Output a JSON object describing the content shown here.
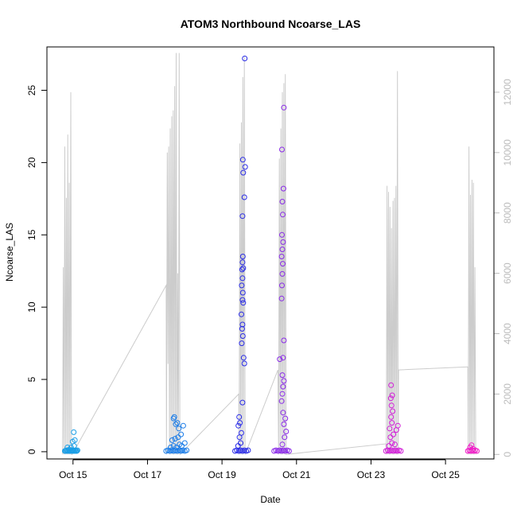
{
  "chart_data": {
    "type": "scatter",
    "title": "ATOM3 Northbound Ncoarse_LAS",
    "xlabel": "Date",
    "ylabel": "Ncoarse_LAS",
    "x_ticks": [
      "Oct 15",
      "Oct 17",
      "Oct 19",
      "Oct 21",
      "Oct 23",
      "Oct 25"
    ],
    "x_tick_days": [
      15,
      17,
      19,
      21,
      23,
      25
    ],
    "xlim_days": [
      14.3,
      26.3
    ],
    "y_ticks": [
      0,
      5,
      10,
      15,
      20,
      25
    ],
    "ylim": [
      -0.5,
      28.0
    ],
    "y2_ticks": [
      0,
      2000,
      4000,
      6000,
      8000,
      10000,
      12000
    ],
    "y2lim": [
      -150,
      13500
    ],
    "grid": false,
    "line_color": "#cccccc",
    "right_axis_color": "#bbbbbb",
    "points": [
      {
        "x": 14.78,
        "y": 0.05,
        "c": "#1a9ee6"
      },
      {
        "x": 14.8,
        "y": 0.05,
        "c": "#1a9ee6"
      },
      {
        "x": 14.82,
        "y": 0.1,
        "c": "#1a9ee6"
      },
      {
        "x": 14.84,
        "y": 0.05,
        "c": "#1a9ee6"
      },
      {
        "x": 14.86,
        "y": 0.1,
        "c": "#1a9ee6"
      },
      {
        "x": 14.88,
        "y": 0.05,
        "c": "#1a9ee6"
      },
      {
        "x": 14.9,
        "y": 0.15,
        "c": "#1a9ee6"
      },
      {
        "x": 14.92,
        "y": 0.05,
        "c": "#1a9ee6"
      },
      {
        "x": 14.94,
        "y": 0.05,
        "c": "#1a9ee6"
      },
      {
        "x": 14.96,
        "y": 0.1,
        "c": "#1a9ee6"
      },
      {
        "x": 14.98,
        "y": 0.05,
        "c": "#1a9ee6"
      },
      {
        "x": 15.0,
        "y": 0.1,
        "c": "#1a9ee6"
      },
      {
        "x": 15.02,
        "y": 0.05,
        "c": "#1a9ee6"
      },
      {
        "x": 15.04,
        "y": 0.05,
        "c": "#1a9ee6"
      },
      {
        "x": 15.06,
        "y": 0.1,
        "c": "#1a9ee6"
      },
      {
        "x": 15.08,
        "y": 0.05,
        "c": "#1a9ee6"
      },
      {
        "x": 15.1,
        "y": 0.05,
        "c": "#1a9ee6"
      },
      {
        "x": 15.12,
        "y": 0.1,
        "c": "#1a9ee6"
      },
      {
        "x": 14.85,
        "y": 0.3,
        "c": "#1a9ee6"
      },
      {
        "x": 14.95,
        "y": 0.3,
        "c": "#1a9ee6"
      },
      {
        "x": 15.03,
        "y": 0.4,
        "c": "#1a9ee6"
      },
      {
        "x": 14.99,
        "y": 0.7,
        "c": "#1a9ee6"
      },
      {
        "x": 15.05,
        "y": 0.8,
        "c": "#1a9ee6"
      },
      {
        "x": 15.02,
        "y": 1.35,
        "c": "#1a9ee6"
      },
      {
        "x": 17.5,
        "y": 0.05,
        "c": "#1a7ce8"
      },
      {
        "x": 17.55,
        "y": 0.1,
        "c": "#1a7ce8"
      },
      {
        "x": 17.6,
        "y": 0.05,
        "c": "#1a7ce8"
      },
      {
        "x": 17.65,
        "y": 0.1,
        "c": "#1a7ce8"
      },
      {
        "x": 17.7,
        "y": 0.05,
        "c": "#1a7ce8"
      },
      {
        "x": 17.75,
        "y": 0.1,
        "c": "#1a7ce8"
      },
      {
        "x": 17.8,
        "y": 0.05,
        "c": "#1a7ce8"
      },
      {
        "x": 17.85,
        "y": 0.1,
        "c": "#1a7ce8"
      },
      {
        "x": 17.9,
        "y": 0.05,
        "c": "#1a7ce8"
      },
      {
        "x": 17.95,
        "y": 0.1,
        "c": "#1a7ce8"
      },
      {
        "x": 18.0,
        "y": 0.05,
        "c": "#1a7ce8"
      },
      {
        "x": 18.05,
        "y": 0.1,
        "c": "#1a7ce8"
      },
      {
        "x": 17.62,
        "y": 0.3,
        "c": "#1a7ce8"
      },
      {
        "x": 17.7,
        "y": 0.4,
        "c": "#1a7ce8"
      },
      {
        "x": 17.78,
        "y": 0.3,
        "c": "#1a7ce8"
      },
      {
        "x": 17.86,
        "y": 0.5,
        "c": "#1a7ce8"
      },
      {
        "x": 17.92,
        "y": 0.4,
        "c": "#1a7ce8"
      },
      {
        "x": 18.0,
        "y": 0.6,
        "c": "#1a7ce8"
      },
      {
        "x": 17.66,
        "y": 0.8,
        "c": "#1a7ce8"
      },
      {
        "x": 17.74,
        "y": 0.9,
        "c": "#1a7ce8"
      },
      {
        "x": 17.82,
        "y": 1.0,
        "c": "#1a7ce8"
      },
      {
        "x": 17.9,
        "y": 1.2,
        "c": "#1a7ce8"
      },
      {
        "x": 17.96,
        "y": 1.8,
        "c": "#1a7ce8"
      },
      {
        "x": 17.84,
        "y": 1.6,
        "c": "#1a7ce8"
      },
      {
        "x": 17.76,
        "y": 1.9,
        "c": "#1a7ce8"
      },
      {
        "x": 17.7,
        "y": 2.3,
        "c": "#1a7ce8"
      },
      {
        "x": 17.72,
        "y": 2.4,
        "c": "#1a7ce8"
      },
      {
        "x": 17.8,
        "y": 2.0,
        "c": "#1a7ce8"
      },
      {
        "x": 19.35,
        "y": 0.05,
        "c": "#2a2ce8"
      },
      {
        "x": 19.4,
        "y": 0.1,
        "c": "#2a2ce8"
      },
      {
        "x": 19.45,
        "y": 0.05,
        "c": "#2a2ce8"
      },
      {
        "x": 19.5,
        "y": 0.1,
        "c": "#2a2ce8"
      },
      {
        "x": 19.55,
        "y": 0.05,
        "c": "#2a2ce8"
      },
      {
        "x": 19.6,
        "y": 0.1,
        "c": "#2a2ce8"
      },
      {
        "x": 19.65,
        "y": 0.05,
        "c": "#2a2ce8"
      },
      {
        "x": 19.7,
        "y": 0.1,
        "c": "#2a2ce8"
      },
      {
        "x": 19.43,
        "y": 0.4,
        "c": "#2a2ce8"
      },
      {
        "x": 19.5,
        "y": 0.6,
        "c": "#2a2ce8"
      },
      {
        "x": 19.47,
        "y": 1.0,
        "c": "#2a2ce8"
      },
      {
        "x": 19.52,
        "y": 1.3,
        "c": "#2a2ce8"
      },
      {
        "x": 19.44,
        "y": 1.8,
        "c": "#2a2ce8"
      },
      {
        "x": 19.48,
        "y": 2.0,
        "c": "#2a2ce8"
      },
      {
        "x": 19.46,
        "y": 2.4,
        "c": "#2a2ce8"
      },
      {
        "x": 19.55,
        "y": 3.4,
        "c": "#2a2ce8"
      },
      {
        "x": 19.6,
        "y": 6.1,
        "c": "#2a2ce8"
      },
      {
        "x": 19.58,
        "y": 6.5,
        "c": "#2a2ce8"
      },
      {
        "x": 19.53,
        "y": 7.5,
        "c": "#2a2ce8"
      },
      {
        "x": 19.56,
        "y": 8.0,
        "c": "#2a2ce8"
      },
      {
        "x": 19.54,
        "y": 8.5,
        "c": "#2a2ce8"
      },
      {
        "x": 19.55,
        "y": 8.8,
        "c": "#2a2ce8"
      },
      {
        "x": 19.52,
        "y": 9.5,
        "c": "#2a2ce8"
      },
      {
        "x": 19.57,
        "y": 10.3,
        "c": "#2a2ce8"
      },
      {
        "x": 19.55,
        "y": 10.5,
        "c": "#2a2ce8"
      },
      {
        "x": 19.56,
        "y": 11.0,
        "c": "#2a2ce8"
      },
      {
        "x": 19.53,
        "y": 11.5,
        "c": "#2a2ce8"
      },
      {
        "x": 19.55,
        "y": 12.0,
        "c": "#2a2ce8"
      },
      {
        "x": 19.54,
        "y": 12.6,
        "c": "#2a2ce8"
      },
      {
        "x": 19.57,
        "y": 12.7,
        "c": "#2a2ce8"
      },
      {
        "x": 19.55,
        "y": 13.1,
        "c": "#2a2ce8"
      },
      {
        "x": 19.56,
        "y": 13.5,
        "c": "#2a2ce8"
      },
      {
        "x": 19.55,
        "y": 16.3,
        "c": "#2a2ce8"
      },
      {
        "x": 19.6,
        "y": 17.6,
        "c": "#2a2ce8"
      },
      {
        "x": 19.57,
        "y": 19.3,
        "c": "#2a2ce8"
      },
      {
        "x": 19.62,
        "y": 19.7,
        "c": "#2a2ce8"
      },
      {
        "x": 19.56,
        "y": 20.2,
        "c": "#2a2ce8"
      },
      {
        "x": 19.61,
        "y": 27.2,
        "c": "#2a2ce8"
      },
      {
        "x": 20.4,
        "y": 0.05,
        "c": "#8a2ae8"
      },
      {
        "x": 20.45,
        "y": 0.1,
        "c": "#8a2ae8"
      },
      {
        "x": 20.5,
        "y": 0.05,
        "c": "#8a2ae8"
      },
      {
        "x": 20.55,
        "y": 0.1,
        "c": "#8a2ae8"
      },
      {
        "x": 20.6,
        "y": 0.05,
        "c": "#8a2ae8"
      },
      {
        "x": 20.65,
        "y": 0.1,
        "c": "#8a2ae8"
      },
      {
        "x": 20.7,
        "y": 0.05,
        "c": "#8a2ae8"
      },
      {
        "x": 20.75,
        "y": 0.1,
        "c": "#8a2ae8"
      },
      {
        "x": 20.8,
        "y": 0.05,
        "c": "#8a2ae8"
      },
      {
        "x": 20.62,
        "y": 0.5,
        "c": "#8a2ae8"
      },
      {
        "x": 20.68,
        "y": 1.0,
        "c": "#8a2ae8"
      },
      {
        "x": 20.72,
        "y": 1.4,
        "c": "#8a2ae8"
      },
      {
        "x": 20.66,
        "y": 1.9,
        "c": "#8a2ae8"
      },
      {
        "x": 20.7,
        "y": 2.3,
        "c": "#8a2ae8"
      },
      {
        "x": 20.64,
        "y": 2.7,
        "c": "#8a2ae8"
      },
      {
        "x": 20.6,
        "y": 3.5,
        "c": "#8a2ae8"
      },
      {
        "x": 20.62,
        "y": 4.0,
        "c": "#8a2ae8"
      },
      {
        "x": 20.64,
        "y": 4.5,
        "c": "#8a2ae8"
      },
      {
        "x": 20.66,
        "y": 4.9,
        "c": "#8a2ae8"
      },
      {
        "x": 20.62,
        "y": 5.3,
        "c": "#8a2ae8"
      },
      {
        "x": 20.55,
        "y": 6.4,
        "c": "#8a2ae8"
      },
      {
        "x": 20.64,
        "y": 6.5,
        "c": "#8a2ae8"
      },
      {
        "x": 20.66,
        "y": 7.7,
        "c": "#8a2ae8"
      },
      {
        "x": 20.6,
        "y": 10.6,
        "c": "#8a2ae8"
      },
      {
        "x": 20.61,
        "y": 11.5,
        "c": "#8a2ae8"
      },
      {
        "x": 20.62,
        "y": 12.3,
        "c": "#8a2ae8"
      },
      {
        "x": 20.63,
        "y": 13.0,
        "c": "#8a2ae8"
      },
      {
        "x": 20.6,
        "y": 13.5,
        "c": "#8a2ae8"
      },
      {
        "x": 20.62,
        "y": 14.0,
        "c": "#8a2ae8"
      },
      {
        "x": 20.64,
        "y": 14.5,
        "c": "#8a2ae8"
      },
      {
        "x": 20.61,
        "y": 15.0,
        "c": "#8a2ae8"
      },
      {
        "x": 20.63,
        "y": 16.4,
        "c": "#8a2ae8"
      },
      {
        "x": 20.62,
        "y": 17.3,
        "c": "#8a2ae8"
      },
      {
        "x": 20.65,
        "y": 18.2,
        "c": "#8a2ae8"
      },
      {
        "x": 20.61,
        "y": 20.9,
        "c": "#8a2ae8"
      },
      {
        "x": 20.66,
        "y": 23.8,
        "c": "#8a2ae8"
      },
      {
        "x": 23.4,
        "y": 0.05,
        "c": "#d21ed9"
      },
      {
        "x": 23.45,
        "y": 0.1,
        "c": "#d21ed9"
      },
      {
        "x": 23.5,
        "y": 0.05,
        "c": "#d21ed9"
      },
      {
        "x": 23.55,
        "y": 0.1,
        "c": "#d21ed9"
      },
      {
        "x": 23.6,
        "y": 0.05,
        "c": "#d21ed9"
      },
      {
        "x": 23.65,
        "y": 0.1,
        "c": "#d21ed9"
      },
      {
        "x": 23.7,
        "y": 0.05,
        "c": "#d21ed9"
      },
      {
        "x": 23.75,
        "y": 0.1,
        "c": "#d21ed9"
      },
      {
        "x": 23.8,
        "y": 0.05,
        "c": "#d21ed9"
      },
      {
        "x": 23.48,
        "y": 0.4,
        "c": "#d21ed9"
      },
      {
        "x": 23.56,
        "y": 0.6,
        "c": "#d21ed9"
      },
      {
        "x": 23.64,
        "y": 0.5,
        "c": "#d21ed9"
      },
      {
        "x": 23.52,
        "y": 1.0,
        "c": "#d21ed9"
      },
      {
        "x": 23.6,
        "y": 1.2,
        "c": "#d21ed9"
      },
      {
        "x": 23.68,
        "y": 1.5,
        "c": "#d21ed9"
      },
      {
        "x": 23.72,
        "y": 1.8,
        "c": "#d21ed9"
      },
      {
        "x": 23.5,
        "y": 1.6,
        "c": "#d21ed9"
      },
      {
        "x": 23.56,
        "y": 2.0,
        "c": "#d21ed9"
      },
      {
        "x": 23.54,
        "y": 2.4,
        "c": "#d21ed9"
      },
      {
        "x": 23.58,
        "y": 2.8,
        "c": "#d21ed9"
      },
      {
        "x": 23.55,
        "y": 3.2,
        "c": "#d21ed9"
      },
      {
        "x": 23.53,
        "y": 3.7,
        "c": "#d21ed9"
      },
      {
        "x": 23.57,
        "y": 3.9,
        "c": "#d21ed9"
      },
      {
        "x": 23.54,
        "y": 4.6,
        "c": "#d21ed9"
      },
      {
        "x": 25.6,
        "y": 0.05,
        "c": "#f01ec8"
      },
      {
        "x": 25.64,
        "y": 0.1,
        "c": "#f01ec8"
      },
      {
        "x": 25.68,
        "y": 0.05,
        "c": "#f01ec8"
      },
      {
        "x": 25.72,
        "y": 0.1,
        "c": "#f01ec8"
      },
      {
        "x": 25.76,
        "y": 0.05,
        "c": "#f01ec8"
      },
      {
        "x": 25.8,
        "y": 0.1,
        "c": "#f01ec8"
      },
      {
        "x": 25.84,
        "y": 0.05,
        "c": "#f01ec8"
      },
      {
        "x": 25.66,
        "y": 0.3,
        "c": "#f01ec8"
      },
      {
        "x": 25.74,
        "y": 0.2,
        "c": "#f01ec8"
      },
      {
        "x": 25.7,
        "y": 0.45,
        "c": "#f01ec8"
      }
    ],
    "line": [
      [
        14.72,
        0
      ],
      [
        14.74,
        6200
      ],
      [
        14.76,
        0
      ],
      [
        14.78,
        10200
      ],
      [
        14.8,
        0
      ],
      [
        14.82,
        8500
      ],
      [
        14.84,
        0
      ],
      [
        14.86,
        10600
      ],
      [
        14.88,
        0
      ],
      [
        14.9,
        9000
      ],
      [
        14.92,
        0
      ],
      [
        14.94,
        12000
      ],
      [
        14.96,
        0
      ],
      [
        14.98,
        0
      ],
      [
        17.5,
        5600
      ],
      [
        17.51,
        0
      ],
      [
        17.53,
        10000
      ],
      [
        17.55,
        3000
      ],
      [
        17.57,
        10200
      ],
      [
        17.59,
        0
      ],
      [
        17.61,
        10800
      ],
      [
        17.63,
        0
      ],
      [
        17.65,
        11200
      ],
      [
        17.67,
        0
      ],
      [
        17.69,
        11400
      ],
      [
        17.71,
        0
      ],
      [
        17.73,
        12200
      ],
      [
        17.75,
        0
      ],
      [
        17.77,
        13300
      ],
      [
        17.79,
        0
      ],
      [
        17.81,
        6000
      ],
      [
        17.83,
        0
      ],
      [
        17.85,
        13300
      ],
      [
        17.87,
        0
      ],
      [
        19.45,
        2000
      ],
      [
        19.46,
        0
      ],
      [
        19.48,
        10300
      ],
      [
        19.5,
        0
      ],
      [
        19.52,
        11000
      ],
      [
        19.54,
        0
      ],
      [
        19.56,
        12500
      ],
      [
        19.58,
        0
      ],
      [
        19.6,
        13200
      ],
      [
        19.62,
        0
      ],
      [
        20.5,
        2800
      ],
      [
        20.52,
        0
      ],
      [
        20.54,
        9800
      ],
      [
        20.56,
        0
      ],
      [
        20.58,
        10800
      ],
      [
        20.6,
        0
      ],
      [
        20.62,
        12000
      ],
      [
        20.64,
        0
      ],
      [
        20.66,
        12300
      ],
      [
        20.68,
        0
      ],
      [
        20.7,
        12600
      ],
      [
        20.72,
        0
      ],
      [
        23.4,
        350
      ],
      [
        23.41,
        0
      ],
      [
        23.43,
        8900
      ],
      [
        23.45,
        0
      ],
      [
        23.47,
        8700
      ],
      [
        23.49,
        0
      ],
      [
        23.51,
        8200
      ],
      [
        23.53,
        0
      ],
      [
        23.55,
        7500
      ],
      [
        23.57,
        0
      ],
      [
        23.59,
        8400
      ],
      [
        23.61,
        0
      ],
      [
        23.63,
        8500
      ],
      [
        23.65,
        0
      ],
      [
        23.67,
        8900
      ],
      [
        23.69,
        0
      ],
      [
        23.71,
        12700
      ],
      [
        23.73,
        0
      ],
      [
        23.74,
        2800
      ],
      [
        25.6,
        2900
      ],
      [
        25.61,
        0
      ],
      [
        25.63,
        10200
      ],
      [
        25.65,
        0
      ],
      [
        25.67,
        8600
      ],
      [
        25.69,
        0
      ],
      [
        25.71,
        9100
      ],
      [
        25.73,
        0
      ],
      [
        25.75,
        9000
      ],
      [
        25.77,
        0
      ],
      [
        25.79,
        6200
      ],
      [
        25.81,
        0
      ]
    ]
  }
}
